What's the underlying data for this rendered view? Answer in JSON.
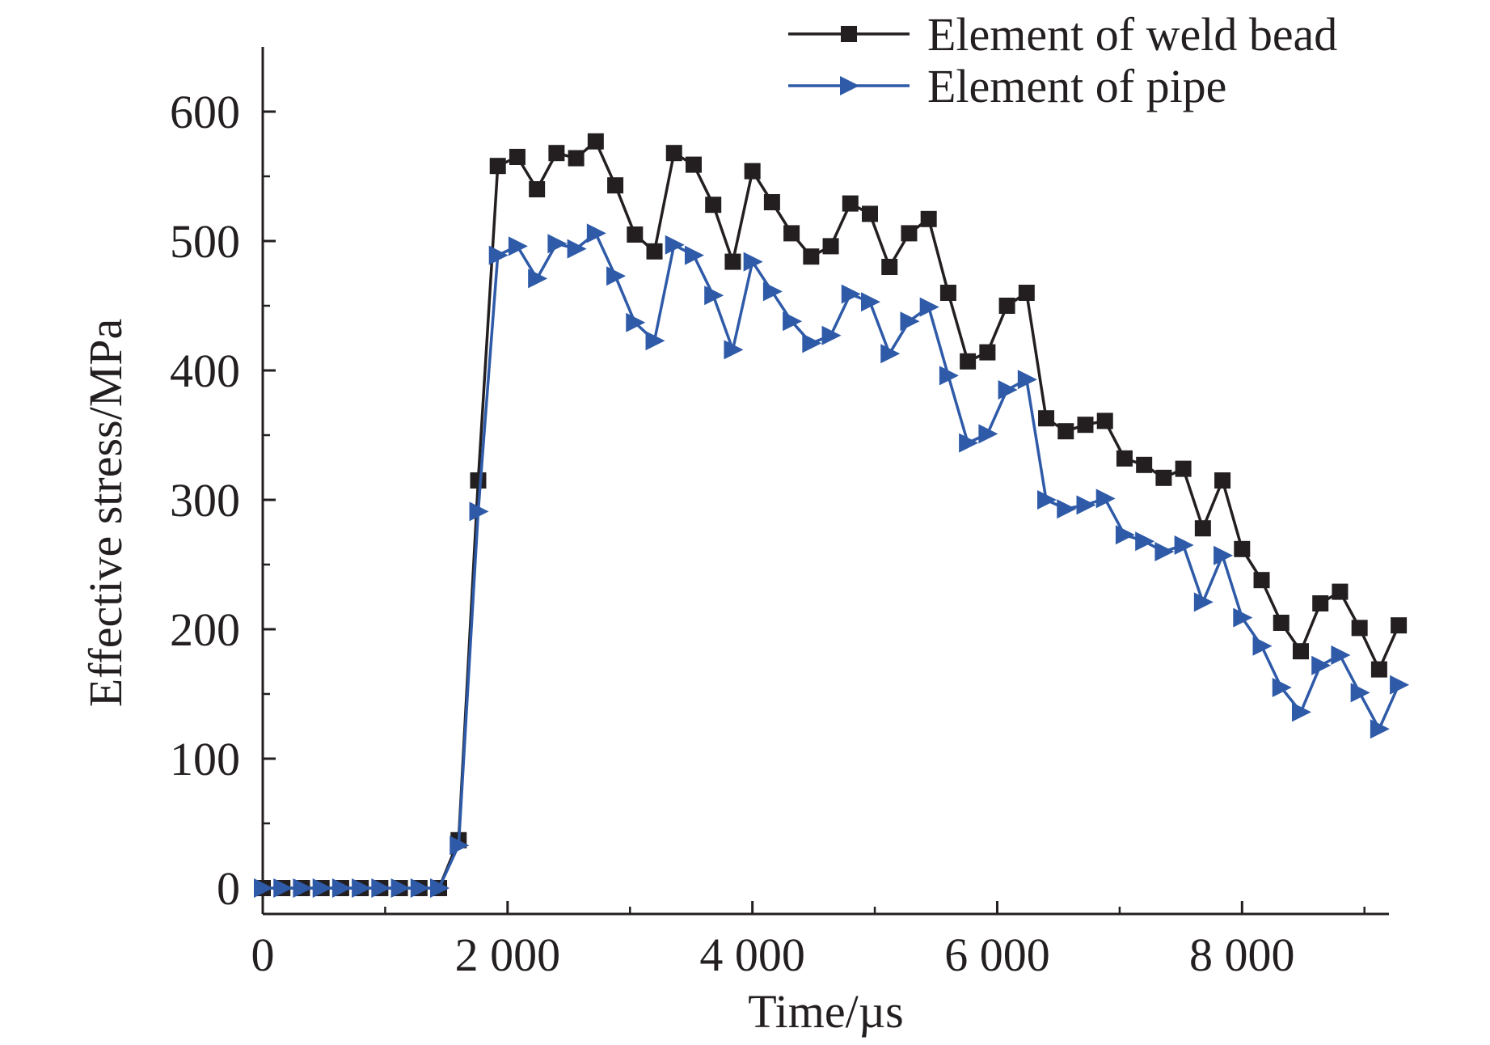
{
  "chart_data": {
    "type": "line",
    "title": "",
    "xlabel": "Time/µs",
    "ylabel": "Effective stress/MPa",
    "xlim": [
      0,
      9200
    ],
    "ylim": [
      -20,
      650
    ],
    "xticks": [
      0,
      2000,
      4000,
      6000,
      8000
    ],
    "xtick_labels": [
      "0",
      "2 000",
      "4 000",
      "6 000",
      "8 000"
    ],
    "yticks": [
      0,
      100,
      200,
      300,
      400,
      500,
      600
    ],
    "ytick_labels": [
      "0",
      "100",
      "200",
      "300",
      "400",
      "500",
      "600"
    ],
    "legend_position": "top-right",
    "series": [
      {
        "name": "Element of weld bead",
        "color": "#231f20",
        "marker": "square",
        "x": [
          0,
          160,
          320,
          480,
          640,
          800,
          960,
          1120,
          1280,
          1440,
          1600,
          1760,
          1920,
          2080,
          2240,
          2400,
          2560,
          2720,
          2880,
          3040,
          3200,
          3360,
          3520,
          3680,
          3840,
          4000,
          4160,
          4320,
          4480,
          4640,
          4800,
          4960,
          5120,
          5280,
          5440,
          5600,
          5760,
          5920,
          6080,
          6240,
          6400,
          6560,
          6720,
          6880,
          7040,
          7200,
          7360,
          7520,
          7680,
          7840,
          8000,
          8160,
          8320,
          8480,
          8640,
          8800,
          8960,
          9120,
          9280
        ],
        "y": [
          0,
          0,
          0,
          0,
          0,
          0,
          0,
          0,
          0,
          0,
          37,
          315,
          558,
          565,
          540,
          568,
          564,
          577,
          543,
          505,
          492,
          568,
          559,
          528,
          484,
          554,
          530,
          506,
          488,
          496,
          529,
          521,
          480,
          506,
          517,
          460,
          407,
          414,
          450,
          460,
          363,
          353,
          358,
          361,
          332,
          327,
          317,
          324,
          278,
          315,
          262,
          238,
          205,
          183,
          220,
          229,
          201,
          169,
          203
        ]
      },
      {
        "name": "Element of pipe",
        "color": "#2e5aa8",
        "marker": "triangle-right",
        "x": [
          0,
          160,
          320,
          480,
          640,
          800,
          960,
          1120,
          1280,
          1440,
          1600,
          1760,
          1920,
          2080,
          2240,
          2400,
          2560,
          2720,
          2880,
          3040,
          3200,
          3360,
          3520,
          3680,
          3840,
          4000,
          4160,
          4320,
          4480,
          4640,
          4800,
          4960,
          5120,
          5280,
          5440,
          5600,
          5760,
          5920,
          6080,
          6240,
          6400,
          6560,
          6720,
          6880,
          7040,
          7200,
          7360,
          7520,
          7680,
          7840,
          8000,
          8160,
          8320,
          8480,
          8640,
          8800,
          8960,
          9120,
          9280
        ],
        "y": [
          0,
          0,
          0,
          0,
          0,
          0,
          0,
          0,
          0,
          0,
          33,
          291,
          489,
          496,
          471,
          498,
          494,
          506,
          473,
          437,
          423,
          497,
          489,
          458,
          416,
          484,
          461,
          438,
          421,
          427,
          459,
          453,
          413,
          438,
          449,
          396,
          344,
          351,
          385,
          393,
          300,
          293,
          296,
          301,
          273,
          268,
          260,
          265,
          221,
          257,
          209,
          187,
          155,
          136,
          172,
          180,
          151,
          123,
          157
        ]
      }
    ]
  }
}
